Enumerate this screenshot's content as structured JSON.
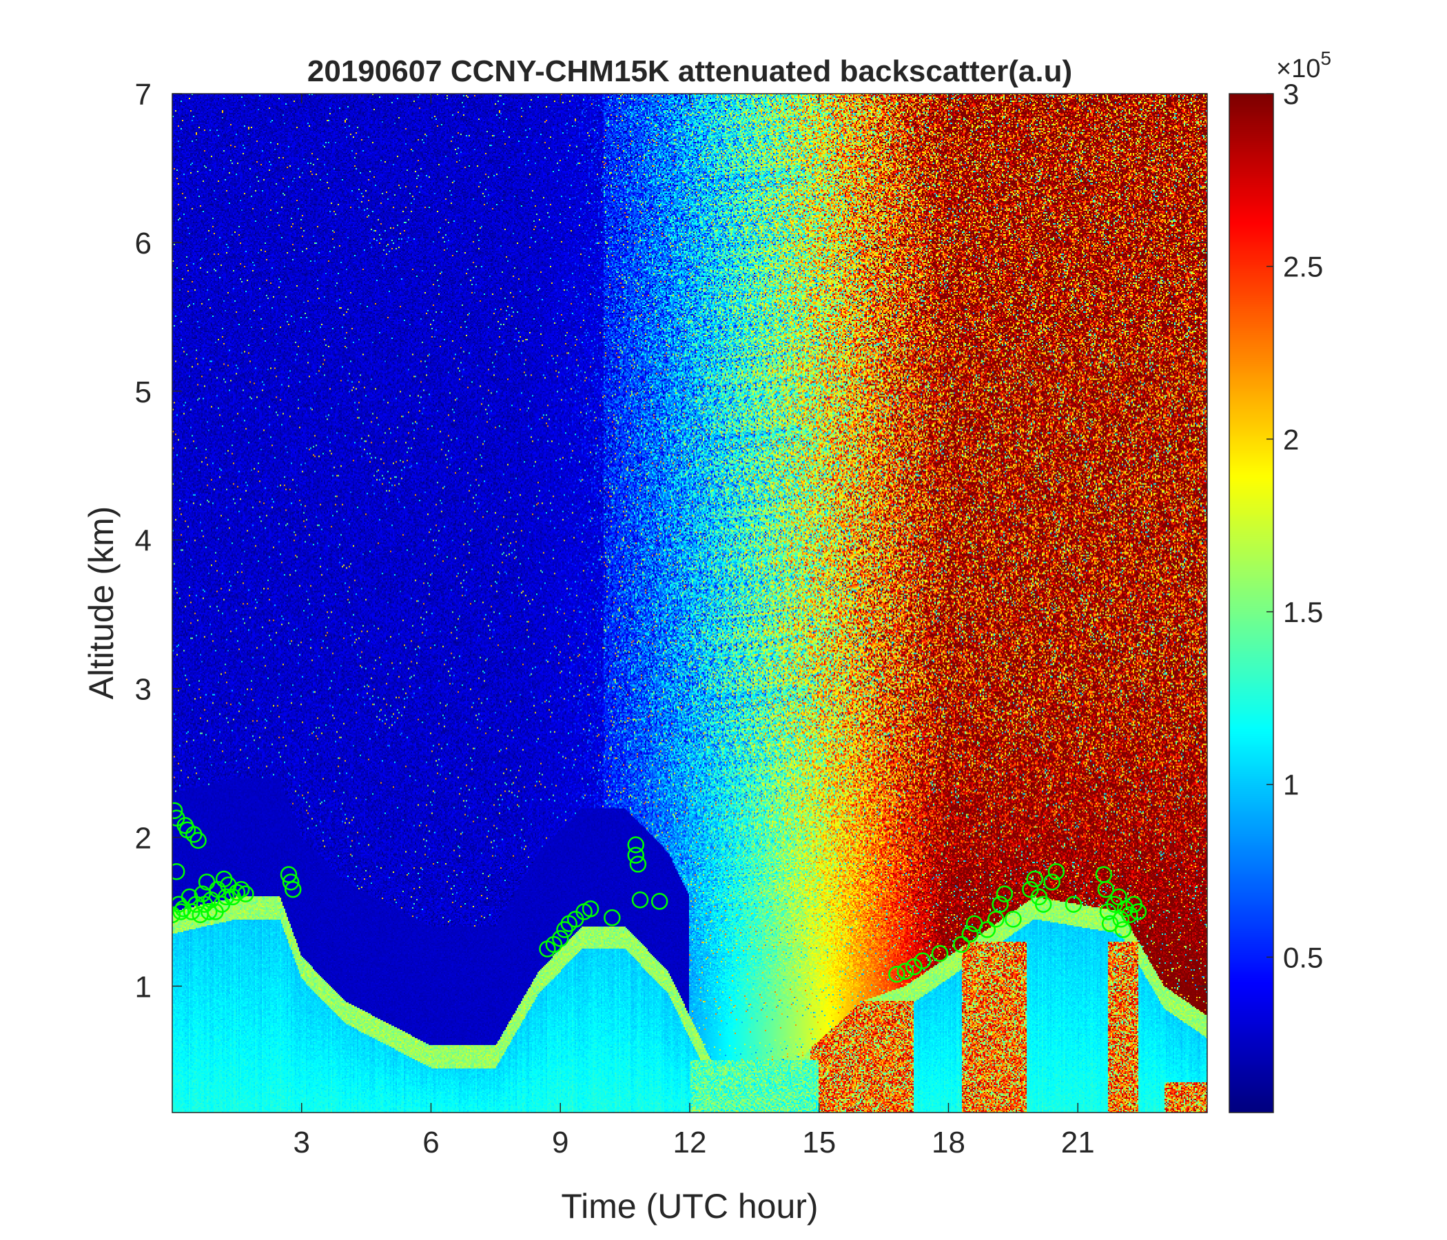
{
  "chart_data": {
    "type": "heatmap",
    "title": "20190607 CCNY-CHM15K attenuated backscatter(a.u)",
    "xlabel": "Time (UTC hour)",
    "ylabel": "Altitude (km)",
    "xlim": [
      0,
      24
    ],
    "ylim": [
      0.15,
      7
    ],
    "xticks": [
      3,
      6,
      9,
      12,
      15,
      18,
      21
    ],
    "yticks": [
      1,
      2,
      3,
      4,
      5,
      6,
      7
    ],
    "colormap": "jet",
    "colorbar": {
      "range": [
        0.05,
        3
      ],
      "ticks": [
        0.5,
        1,
        1.5,
        2,
        2.5,
        3
      ],
      "tick_labels": [
        "0.5",
        "1",
        "1.5",
        "2",
        "2.5",
        "3"
      ],
      "multiplier_base": "×10",
      "multiplier_exponent": "5"
    },
    "background_field": {
      "description_units": "backscatter ×10^5 a.u.",
      "upper_level_left": 0.5,
      "upper_level_right": 3.0,
      "lower_layer_profile": [
        {
          "t": 0.0,
          "top": 1.5
        },
        {
          "t": 1.5,
          "top": 1.6
        },
        {
          "t": 2.5,
          "top": 1.6
        },
        {
          "t": 3.0,
          "top": 1.2
        },
        {
          "t": 4.0,
          "top": 0.9
        },
        {
          "t": 6.0,
          "top": 0.6
        },
        {
          "t": 7.5,
          "top": 0.6
        },
        {
          "t": 8.5,
          "top": 1.1
        },
        {
          "t": 9.5,
          "top": 1.4
        },
        {
          "t": 10.5,
          "top": 1.4
        },
        {
          "t": 11.5,
          "top": 1.1
        },
        {
          "t": 12.5,
          "top": 0.5
        },
        {
          "t": 14.5,
          "top": 0.5
        },
        {
          "t": 16.0,
          "top": 0.9
        },
        {
          "t": 17.0,
          "top": 1.0
        },
        {
          "t": 18.5,
          "top": 1.3
        },
        {
          "t": 20.0,
          "top": 1.6
        },
        {
          "t": 22.0,
          "top": 1.5
        },
        {
          "t": 23.0,
          "top": 1.0
        },
        {
          "t": 24.0,
          "top": 0.8
        }
      ],
      "high_backscatter_regions": [
        {
          "t0": 14.8,
          "t1": 17.2,
          "alt_max": 0.9
        },
        {
          "t0": 18.3,
          "t1": 19.8,
          "alt_max": 1.3
        },
        {
          "t0": 21.7,
          "t1": 22.4,
          "alt_max": 1.3
        },
        {
          "t0": 23.0,
          "t1": 24.0,
          "alt_max": 0.35
        }
      ]
    },
    "series": [
      {
        "marker": "circle",
        "color": "#00ff00",
        "points": [
          {
            "x": 0.0,
            "y": 1.48
          },
          {
            "x": 0.05,
            "y": 2.18
          },
          {
            "x": 0.1,
            "y": 2.13
          },
          {
            "x": 0.1,
            "y": 1.77
          },
          {
            "x": 0.15,
            "y": 1.55
          },
          {
            "x": 0.2,
            "y": 1.5
          },
          {
            "x": 0.25,
            "y": 1.52
          },
          {
            "x": 0.3,
            "y": 2.08
          },
          {
            "x": 0.35,
            "y": 2.05
          },
          {
            "x": 0.4,
            "y": 1.6
          },
          {
            "x": 0.45,
            "y": 1.5
          },
          {
            "x": 0.5,
            "y": 2.02
          },
          {
            "x": 0.55,
            "y": 1.55
          },
          {
            "x": 0.6,
            "y": 1.98
          },
          {
            "x": 0.65,
            "y": 1.48
          },
          {
            "x": 0.7,
            "y": 1.62
          },
          {
            "x": 0.75,
            "y": 1.55
          },
          {
            "x": 0.8,
            "y": 1.7
          },
          {
            "x": 0.85,
            "y": 1.5
          },
          {
            "x": 0.9,
            "y": 1.58
          },
          {
            "x": 1.0,
            "y": 1.5
          },
          {
            "x": 1.05,
            "y": 1.65
          },
          {
            "x": 1.15,
            "y": 1.55
          },
          {
            "x": 1.2,
            "y": 1.72
          },
          {
            "x": 1.25,
            "y": 1.6
          },
          {
            "x": 1.3,
            "y": 1.68
          },
          {
            "x": 1.4,
            "y": 1.6
          },
          {
            "x": 1.5,
            "y": 1.63
          },
          {
            "x": 1.6,
            "y": 1.65
          },
          {
            "x": 1.7,
            "y": 1.62
          },
          {
            "x": 2.7,
            "y": 1.75
          },
          {
            "x": 2.75,
            "y": 1.7
          },
          {
            "x": 2.8,
            "y": 1.65
          },
          {
            "x": 8.7,
            "y": 1.25
          },
          {
            "x": 8.85,
            "y": 1.28
          },
          {
            "x": 9.0,
            "y": 1.32
          },
          {
            "x": 9.1,
            "y": 1.38
          },
          {
            "x": 9.2,
            "y": 1.42
          },
          {
            "x": 9.35,
            "y": 1.45
          },
          {
            "x": 9.55,
            "y": 1.5
          },
          {
            "x": 9.7,
            "y": 1.52
          },
          {
            "x": 10.2,
            "y": 1.46
          },
          {
            "x": 10.75,
            "y": 1.95
          },
          {
            "x": 10.75,
            "y": 1.88
          },
          {
            "x": 10.8,
            "y": 1.82
          },
          {
            "x": 10.85,
            "y": 1.58
          },
          {
            "x": 11.3,
            "y": 1.57
          },
          {
            "x": 16.8,
            "y": 1.08
          },
          {
            "x": 17.0,
            "y": 1.1
          },
          {
            "x": 17.2,
            "y": 1.13
          },
          {
            "x": 17.4,
            "y": 1.17
          },
          {
            "x": 17.8,
            "y": 1.22
          },
          {
            "x": 18.3,
            "y": 1.28
          },
          {
            "x": 18.5,
            "y": 1.35
          },
          {
            "x": 18.6,
            "y": 1.42
          },
          {
            "x": 18.9,
            "y": 1.38
          },
          {
            "x": 19.1,
            "y": 1.45
          },
          {
            "x": 19.2,
            "y": 1.55
          },
          {
            "x": 19.3,
            "y": 1.62
          },
          {
            "x": 19.5,
            "y": 1.45
          },
          {
            "x": 19.9,
            "y": 1.65
          },
          {
            "x": 20.0,
            "y": 1.72
          },
          {
            "x": 20.1,
            "y": 1.6
          },
          {
            "x": 20.2,
            "y": 1.55
          },
          {
            "x": 20.4,
            "y": 1.7
          },
          {
            "x": 20.5,
            "y": 1.77
          },
          {
            "x": 20.9,
            "y": 1.55
          },
          {
            "x": 21.6,
            "y": 1.75
          },
          {
            "x": 21.65,
            "y": 1.65
          },
          {
            "x": 21.7,
            "y": 1.5
          },
          {
            "x": 21.75,
            "y": 1.42
          },
          {
            "x": 21.85,
            "y": 1.55
          },
          {
            "x": 21.95,
            "y": 1.6
          },
          {
            "x": 22.0,
            "y": 1.45
          },
          {
            "x": 22.05,
            "y": 1.38
          },
          {
            "x": 22.1,
            "y": 1.52
          },
          {
            "x": 22.2,
            "y": 1.48
          },
          {
            "x": 22.3,
            "y": 1.55
          },
          {
            "x": 22.4,
            "y": 1.5
          }
        ]
      }
    ]
  }
}
